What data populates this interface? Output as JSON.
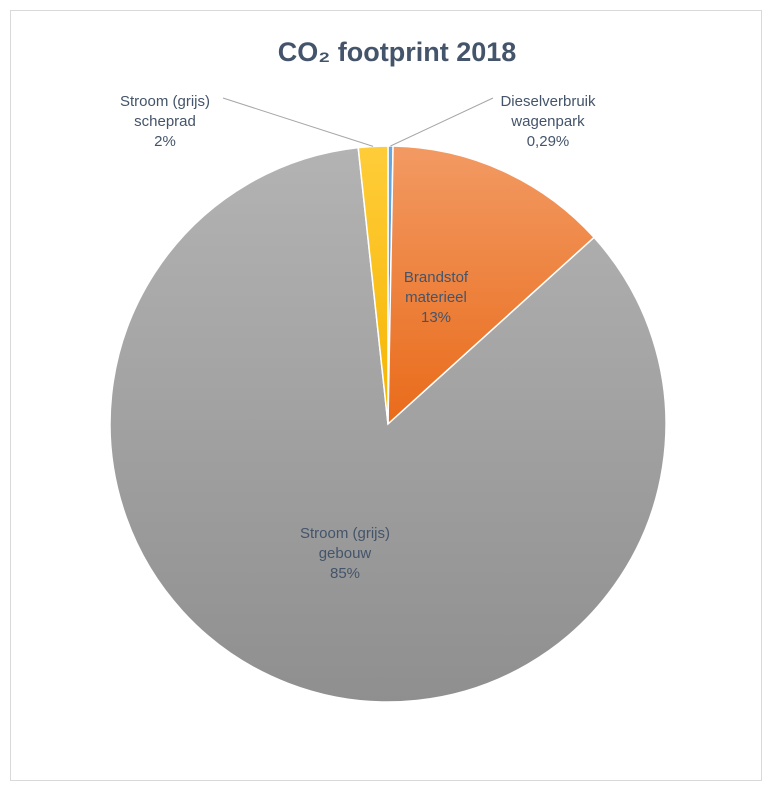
{
  "chart_data": {
    "type": "pie",
    "title": "CO₂ footprint 2018",
    "slices": [
      {
        "name": "Dieselverbruik wagenpark",
        "label_lines": [
          "Dieselverbruik",
          "wagenpark"
        ],
        "pct_label": "0,29%",
        "value": 0.29,
        "color": "#5b9bd5"
      },
      {
        "name": "Brandstof materieel",
        "label_lines": [
          "Brandstof",
          "materieel"
        ],
        "pct_label": "13%",
        "value": 13,
        "color": "#ed7d31"
      },
      {
        "name": "Stroom (grijs) gebouw",
        "label_lines": [
          "Stroom (grijs)",
          "gebouw"
        ],
        "pct_label": "85%",
        "value": 85,
        "color": "#a5a5a5"
      },
      {
        "name": "Stroom (grijs) scheprad",
        "label_lines": [
          "Stroom (grijs)",
          "scheprad"
        ],
        "pct_label": "2%",
        "value": 1.71,
        "color": "#ffc000"
      }
    ],
    "start_angle_deg": 0,
    "direction": "clockwise",
    "legend": "none",
    "data_labels": true
  }
}
